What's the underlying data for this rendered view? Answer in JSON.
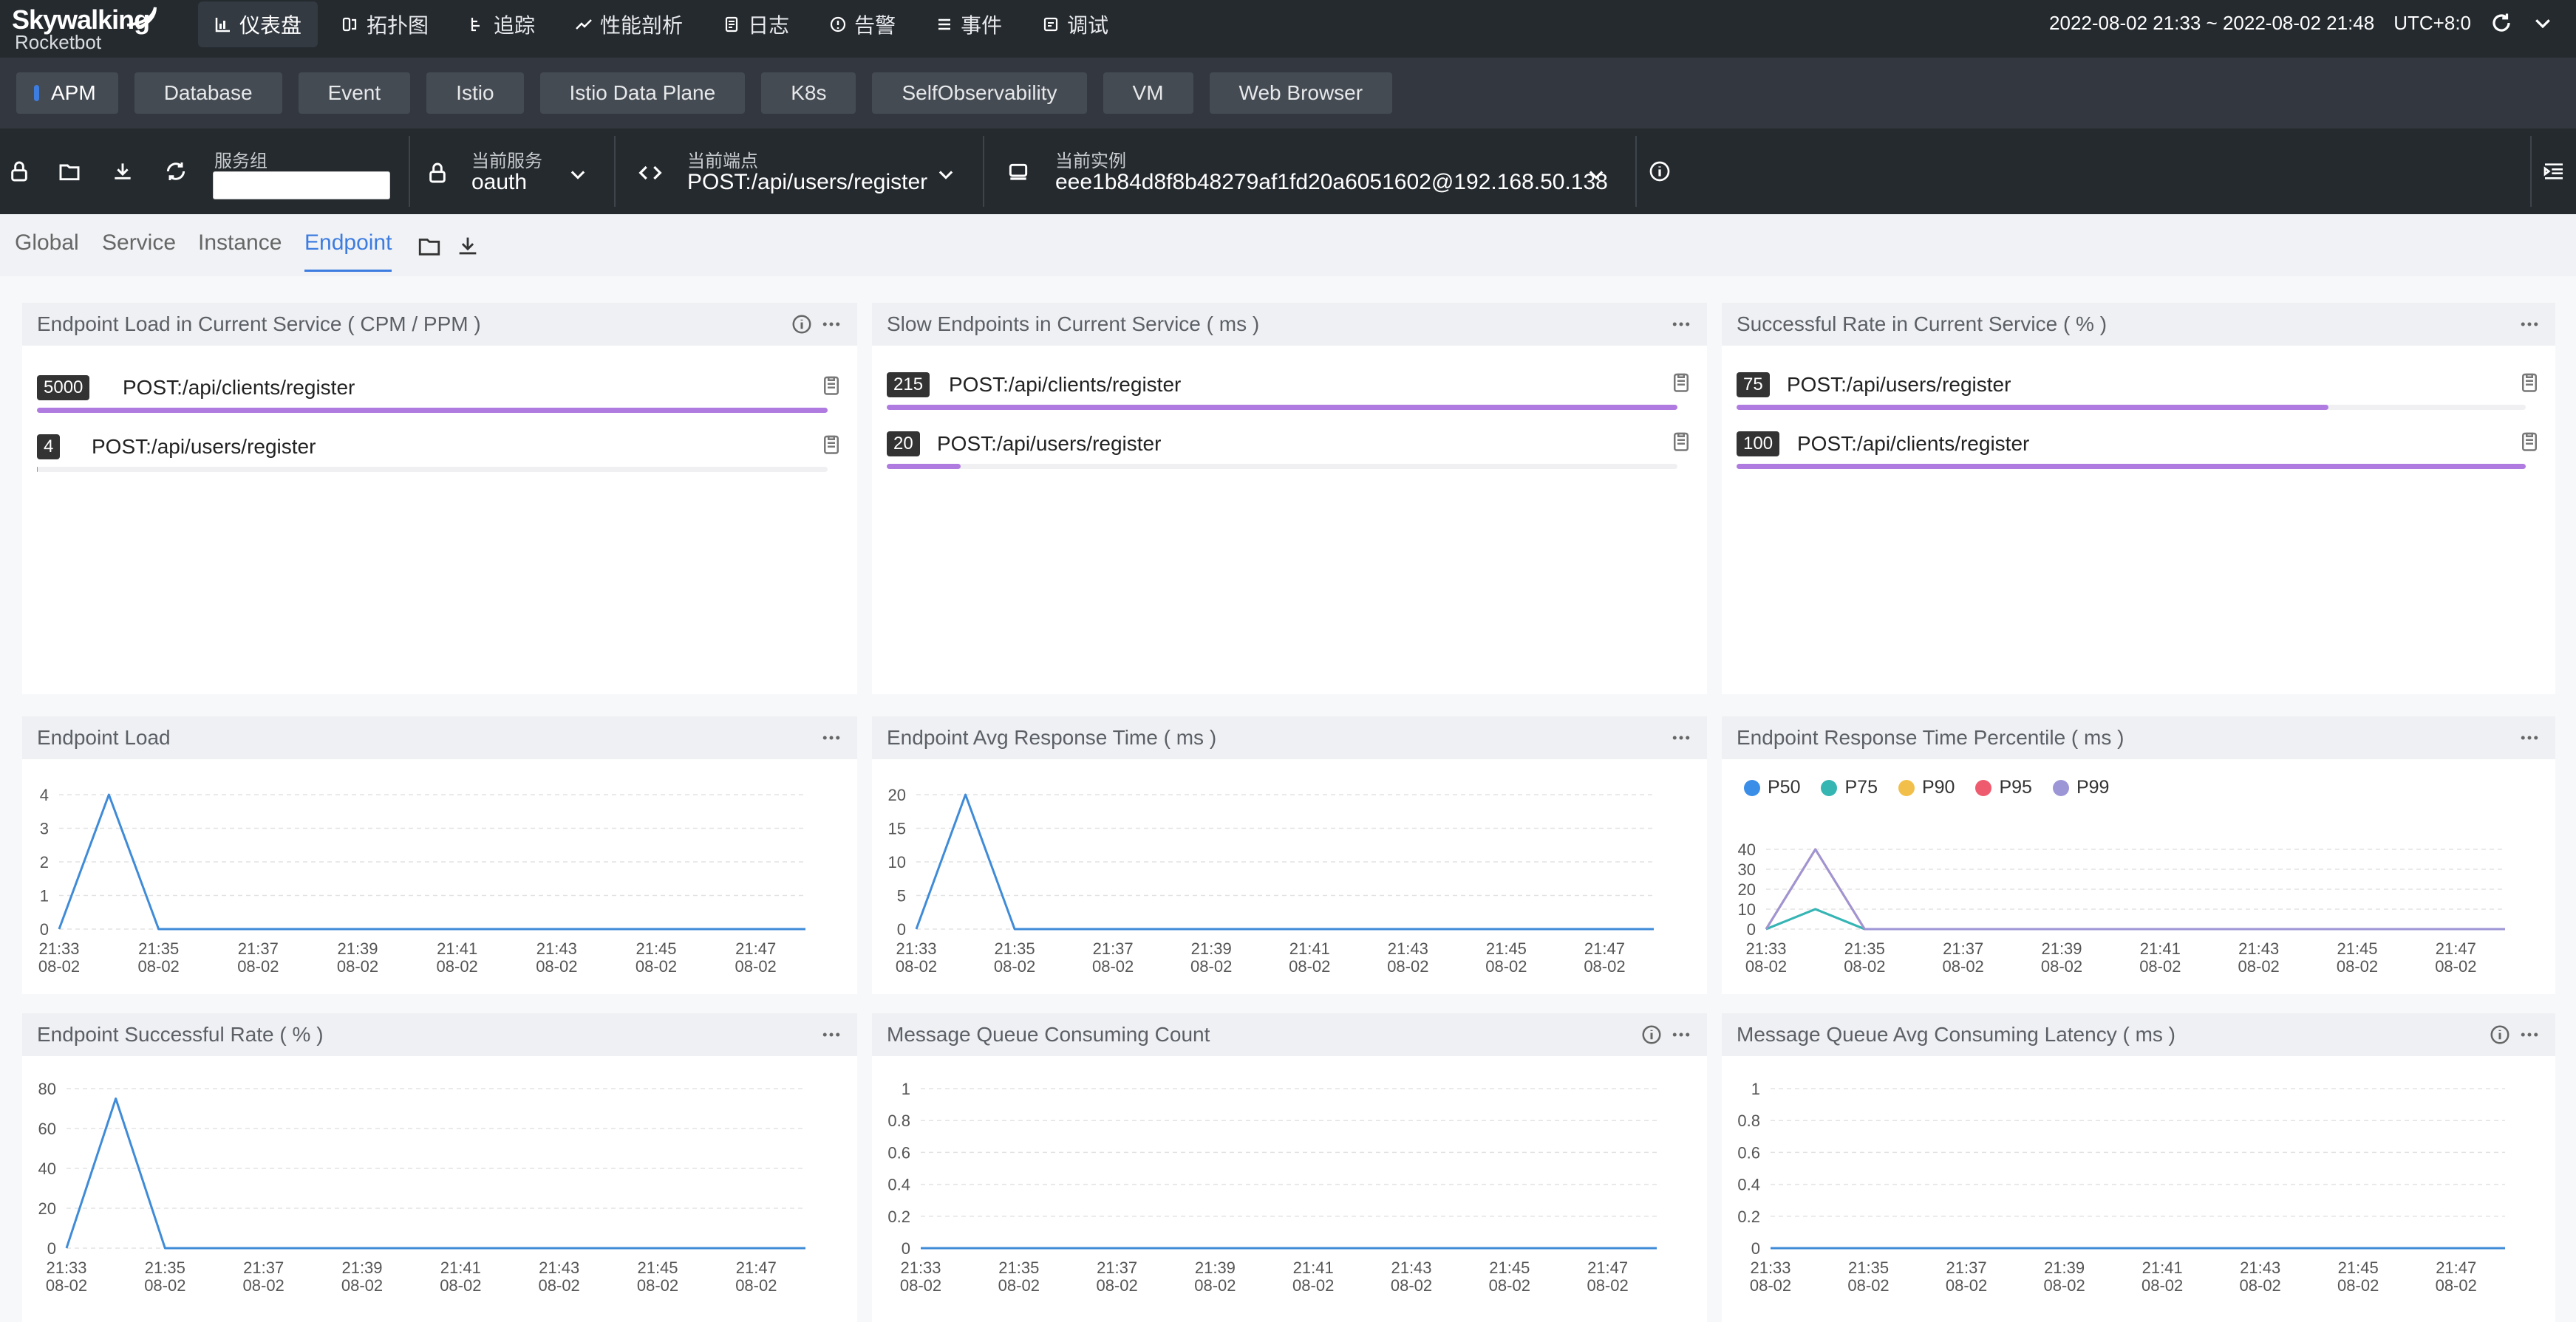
{
  "app": {
    "logo_line1": "Skywalking",
    "logo_line2": "Rocketbot"
  },
  "nav": {
    "items": [
      {
        "label": "仪表盘",
        "icon": "dashboard-icon",
        "active": true
      },
      {
        "label": "拓扑图",
        "icon": "topology-icon"
      },
      {
        "label": "追踪",
        "icon": "trace-icon"
      },
      {
        "label": "性能剖析",
        "icon": "profile-icon"
      },
      {
        "label": "日志",
        "icon": "log-icon"
      },
      {
        "label": "告警",
        "icon": "alarm-icon"
      },
      {
        "label": "事件",
        "icon": "event-icon"
      },
      {
        "label": "调试",
        "icon": "debug-icon"
      }
    ],
    "time_range": "2022-08-02 21:33 ~ 2022-08-02 21:48",
    "timezone": "UTC+8:0"
  },
  "layers": [
    "APM",
    "Database",
    "Event",
    "Istio",
    "Istio Data Plane",
    "K8s",
    "SelfObservability",
    "VM",
    "Web Browser"
  ],
  "selectors": {
    "service_group": {
      "label": "服务组",
      "value": ""
    },
    "service": {
      "label": "当前服务",
      "value": "oauth"
    },
    "endpoint": {
      "label": "当前端点",
      "value": "POST:/api/users/register"
    },
    "instance": {
      "label": "当前实例",
      "value": "eee1b84d8f8b48279af1fd20a6051602@192.168.50.138"
    }
  },
  "subtabs": [
    "Global",
    "Service",
    "Instance",
    "Endpoint"
  ],
  "active_subtab": "Endpoint",
  "lists": {
    "load": {
      "title": "Endpoint Load in Current Service ( CPM / PPM )",
      "rows": [
        {
          "value": "5000",
          "name": "POST:/api/clients/register",
          "fraction": 1.0
        },
        {
          "value": "4",
          "name": "POST:/api/users/register",
          "fraction": 0.001
        }
      ]
    },
    "slow": {
      "title": "Slow Endpoints in Current Service ( ms )",
      "rows": [
        {
          "value": "215",
          "name": "POST:/api/clients/register",
          "fraction": 1.0
        },
        {
          "value": "20",
          "name": "POST:/api/users/register",
          "fraction": 0.093
        }
      ]
    },
    "success": {
      "title": "Successful Rate in Current Service ( % )",
      "rows": [
        {
          "value": "75",
          "name": "POST:/api/users/register",
          "fraction": 0.75
        },
        {
          "value": "100",
          "name": "POST:/api/clients/register",
          "fraction": 1.0
        }
      ]
    }
  },
  "x_ticks": [
    [
      "21:33",
      "08-02"
    ],
    [
      "21:35",
      "08-02"
    ],
    [
      "21:37",
      "08-02"
    ],
    [
      "21:39",
      "08-02"
    ],
    [
      "21:41",
      "08-02"
    ],
    [
      "21:43",
      "08-02"
    ],
    [
      "21:45",
      "08-02"
    ],
    [
      "21:47",
      "08-02"
    ]
  ],
  "chart_data": [
    {
      "id": "endpoint-load",
      "type": "line",
      "title": "Endpoint Load",
      "x": [
        "21:33",
        "21:34",
        "21:35",
        "21:36",
        "21:37",
        "21:38",
        "21:39",
        "21:40",
        "21:41",
        "21:42",
        "21:43",
        "21:44",
        "21:45",
        "21:46",
        "21:47",
        "21:48"
      ],
      "ylim": [
        0,
        4
      ],
      "yticks": [
        0,
        1,
        2,
        3,
        4
      ],
      "grid": true,
      "series": [
        {
          "color": "#3f8bd8",
          "values": [
            0,
            4,
            0,
            0,
            0,
            0,
            0,
            0,
            0,
            0,
            0,
            0,
            0,
            0,
            0,
            0
          ]
        }
      ]
    },
    {
      "id": "endpoint-avg-response",
      "type": "line",
      "title": "Endpoint Avg Response Time ( ms )",
      "x": [
        "21:33",
        "21:34",
        "21:35",
        "21:36",
        "21:37",
        "21:38",
        "21:39",
        "21:40",
        "21:41",
        "21:42",
        "21:43",
        "21:44",
        "21:45",
        "21:46",
        "21:47",
        "21:48"
      ],
      "ylim": [
        0,
        20
      ],
      "yticks": [
        0,
        5,
        10,
        15,
        20
      ],
      "grid": true,
      "series": [
        {
          "color": "#3f8bd8",
          "values": [
            0,
            20,
            0,
            0,
            0,
            0,
            0,
            0,
            0,
            0,
            0,
            0,
            0,
            0,
            0,
            0
          ]
        }
      ]
    },
    {
      "id": "endpoint-percentile",
      "type": "line",
      "title": "Endpoint Response Time Percentile ( ms )",
      "x": [
        "21:33",
        "21:34",
        "21:35",
        "21:36",
        "21:37",
        "21:38",
        "21:39",
        "21:40",
        "21:41",
        "21:42",
        "21:43",
        "21:44",
        "21:45",
        "21:46",
        "21:47",
        "21:48"
      ],
      "ylim": [
        0,
        40
      ],
      "yticks": [
        0,
        10,
        20,
        30,
        40
      ],
      "grid": true,
      "legend": "top-left",
      "series": [
        {
          "name": "P50",
          "color": "#3b8ee8",
          "values": [
            0,
            10,
            0,
            0,
            0,
            0,
            0,
            0,
            0,
            0,
            0,
            0,
            0,
            0,
            0,
            0
          ]
        },
        {
          "name": "P75",
          "color": "#35b6b2",
          "values": [
            0,
            10,
            0,
            0,
            0,
            0,
            0,
            0,
            0,
            0,
            0,
            0,
            0,
            0,
            0,
            0
          ]
        },
        {
          "name": "P90",
          "color": "#f2c04a",
          "values": [
            0,
            40,
            0,
            0,
            0,
            0,
            0,
            0,
            0,
            0,
            0,
            0,
            0,
            0,
            0,
            0
          ]
        },
        {
          "name": "P95",
          "color": "#ee5b6f",
          "values": [
            0,
            40,
            0,
            0,
            0,
            0,
            0,
            0,
            0,
            0,
            0,
            0,
            0,
            0,
            0,
            0
          ]
        },
        {
          "name": "P99",
          "color": "#9d96d6",
          "values": [
            0,
            40,
            0,
            0,
            0,
            0,
            0,
            0,
            0,
            0,
            0,
            0,
            0,
            0,
            0,
            0
          ]
        }
      ]
    },
    {
      "id": "endpoint-success-rate",
      "type": "line",
      "title": "Endpoint Successful Rate ( % )",
      "x": [
        "21:33",
        "21:34",
        "21:35",
        "21:36",
        "21:37",
        "21:38",
        "21:39",
        "21:40",
        "21:41",
        "21:42",
        "21:43",
        "21:44",
        "21:45",
        "21:46",
        "21:47",
        "21:48"
      ],
      "ylim": [
        0,
        80
      ],
      "yticks": [
        0,
        20,
        40,
        60,
        80
      ],
      "grid": true,
      "series": [
        {
          "color": "#3f8bd8",
          "values": [
            0,
            75,
            0,
            0,
            0,
            0,
            0,
            0,
            0,
            0,
            0,
            0,
            0,
            0,
            0,
            0
          ]
        }
      ]
    },
    {
      "id": "mq-consuming-count",
      "type": "line",
      "title": "Message Queue Consuming Count",
      "x": [
        "21:33",
        "21:34",
        "21:35",
        "21:36",
        "21:37",
        "21:38",
        "21:39",
        "21:40",
        "21:41",
        "21:42",
        "21:43",
        "21:44",
        "21:45",
        "21:46",
        "21:47",
        "21:48"
      ],
      "ylim": [
        0,
        1
      ],
      "yticks": [
        0,
        0.2,
        0.4,
        0.6,
        0.8,
        1
      ],
      "grid": true,
      "series": [
        {
          "color": "#3f8bd8",
          "values": [
            0,
            0,
            0,
            0,
            0,
            0,
            0,
            0,
            0,
            0,
            0,
            0,
            0,
            0,
            0,
            0
          ]
        }
      ]
    },
    {
      "id": "mq-consuming-latency",
      "type": "line",
      "title": "Message Queue Avg Consuming Latency ( ms )",
      "x": [
        "21:33",
        "21:34",
        "21:35",
        "21:36",
        "21:37",
        "21:38",
        "21:39",
        "21:40",
        "21:41",
        "21:42",
        "21:43",
        "21:44",
        "21:45",
        "21:46",
        "21:47",
        "21:48"
      ],
      "ylim": [
        0,
        1
      ],
      "yticks": [
        0,
        0.2,
        0.4,
        0.6,
        0.8,
        1
      ],
      "grid": true,
      "series": [
        {
          "color": "#3f8bd8",
          "values": [
            0,
            0,
            0,
            0,
            0,
            0,
            0,
            0,
            0,
            0,
            0,
            0,
            0,
            0,
            0,
            0
          ]
        }
      ]
    }
  ]
}
